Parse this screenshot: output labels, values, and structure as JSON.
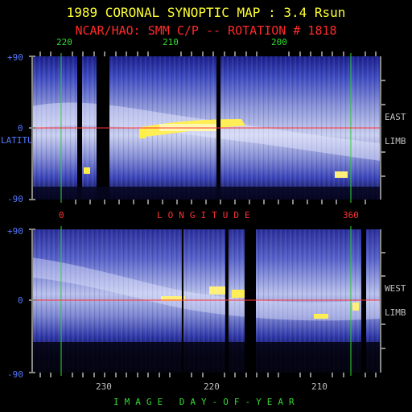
{
  "header": {
    "title": "1989 CORONAL SYNOPTIC MAP : 3.4 Rsun",
    "subtitle": "NCAR/HAO: SMM C/P -- ROTATION # 1818"
  },
  "top_panel": {
    "top_ticks": [
      "220",
      "210",
      "200"
    ],
    "y_ticks": [
      "+90",
      "0",
      "-90"
    ],
    "bottom_ticks": [
      "0",
      "360"
    ],
    "side_label": [
      "EAST",
      "LIMB"
    ]
  },
  "bottom_panel": {
    "y_ticks": [
      "+90",
      "0",
      "-90"
    ],
    "bottom_ticks": [
      "230",
      "220",
      "210"
    ],
    "side_label": [
      "WEST",
      "LIMB"
    ]
  },
  "axis_labels": {
    "middle": "LONGITUDE",
    "latitude": "LATITUDE",
    "bottom": "IMAGE DAY-OF-YEAR"
  },
  "colors": {
    "title": "#ffff33",
    "subtitle": "#ff2a2a",
    "grid_green": "#33dd33",
    "equator_red": "#ff3333",
    "axis_blue": "#5577ff"
  }
}
